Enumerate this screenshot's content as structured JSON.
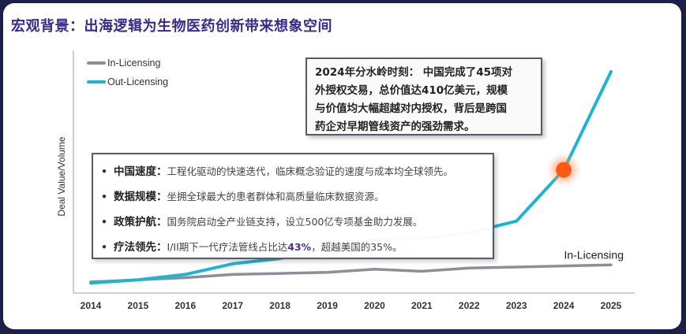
{
  "title": "宏观背景：出海逻辑为生物医药创新带来想象空间",
  "callout": {
    "lines": [
      "2024年分水岭时刻： 中国完成了45项对",
      "外授权交易，总价值达410亿美元，规模",
      "与价值均大幅超越对内授权，背后是跨国",
      "药企对早期管线资产的强劲需求。"
    ]
  },
  "bullets": [
    {
      "head": "中国速度",
      "sep": "：",
      "text": "工程化驱动的快速迭代，临床概念验证的速度与成本均全球领先。"
    },
    {
      "head": "数据规模",
      "sep": "：",
      "text": "坐拥全球最大的患者群体和高质量临床数据资源。"
    },
    {
      "head": "政策护航",
      "sep": "：",
      "text": "国务院启动全产业链支持，设立500亿专项基金助力发展。"
    },
    {
      "head": "疗法领先",
      "sep": "：",
      "text_before": "I/II期下一代疗法管线占比达",
      "highlight": "43%",
      "text_after": "，超越美国的35%。"
    }
  ],
  "bullet_symbol": "•",
  "chart_data": {
    "type": "line",
    "x": [
      "2014",
      "2015",
      "2016",
      "2017",
      "2018",
      "2019",
      "2020",
      "2021",
      "2022",
      "2023",
      "2024",
      "2025"
    ],
    "ylabel": "Deal Value/Volume",
    "xlabel": "",
    "ylim": [
      0,
      100
    ],
    "grid": false,
    "legend_position": "top-left",
    "series": [
      {
        "name": "In-Licensing",
        "color": "#8a9097",
        "values": [
          1.5,
          2.5,
          3.5,
          5,
          5.5,
          6,
          7.5,
          6.5,
          8,
          8.5,
          9,
          9.5
        ]
      },
      {
        "name": "Out-Licensing",
        "color": "#1fb5cf",
        "values": [
          1,
          2.5,
          5,
          10,
          12.5,
          17,
          21.5,
          22,
          24.5,
          30,
          54,
          100
        ]
      }
    ],
    "end_label": "In-Licensing",
    "highlight_point": {
      "year": "2024",
      "series": "Out-Licensing",
      "color": "#ff5a14"
    }
  }
}
